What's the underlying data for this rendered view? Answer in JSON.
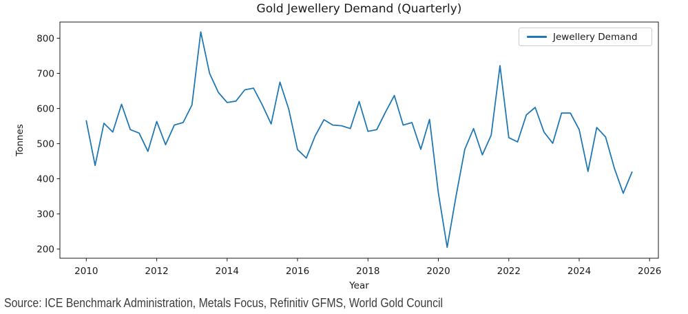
{
  "page": {
    "background": "#ffffff",
    "text_color": "#1a1a1a"
  },
  "source": "Source: ICE Benchmark Administration, Metals Focus, Refinitiv GFMS, World Gold Council",
  "chart_data": {
    "type": "line",
    "title": "Gold Jewellery Demand (Quarterly)",
    "xlabel": "Year",
    "ylabel": "Tonnes",
    "xlim": [
      2009.25,
      2026.25
    ],
    "ylim": [
      174,
      846
    ],
    "x_ticks": [
      2010,
      2012,
      2014,
      2016,
      2018,
      2020,
      2022,
      2024,
      2026
    ],
    "y_ticks": [
      200,
      300,
      400,
      500,
      600,
      700,
      800
    ],
    "grid": false,
    "legend_position": "upper right",
    "line_color": "#1f77b4",
    "axis_color": "#1a1a1a",
    "x_start": 2010.0,
    "x_step": 0.25,
    "quarters": [
      "2010 Q1",
      "2010 Q2",
      "2010 Q3",
      "2010 Q4",
      "2011 Q1",
      "2011 Q2",
      "2011 Q3",
      "2011 Q4",
      "2012 Q1",
      "2012 Q2",
      "2012 Q3",
      "2012 Q4",
      "2013 Q1",
      "2013 Q2",
      "2013 Q3",
      "2013 Q4",
      "2014 Q1",
      "2014 Q2",
      "2014 Q3",
      "2014 Q4",
      "2015 Q1",
      "2015 Q2",
      "2015 Q3",
      "2015 Q4",
      "2016 Q1",
      "2016 Q2",
      "2016 Q3",
      "2016 Q4",
      "2017 Q1",
      "2017 Q2",
      "2017 Q3",
      "2017 Q4",
      "2018 Q1",
      "2018 Q2",
      "2018 Q3",
      "2018 Q4",
      "2019 Q1",
      "2019 Q2",
      "2019 Q3",
      "2019 Q4",
      "2020 Q1",
      "2020 Q2",
      "2020 Q3",
      "2020 Q4",
      "2021 Q1",
      "2021 Q2",
      "2021 Q3",
      "2021 Q4",
      "2022 Q1",
      "2022 Q2",
      "2022 Q3",
      "2022 Q4",
      "2023 Q1",
      "2023 Q2",
      "2023 Q3",
      "2023 Q4",
      "2024 Q1",
      "2024 Q2",
      "2024 Q3",
      "2024 Q4",
      "2025 Q1",
      "2025 Q2",
      "2025 Q3"
    ],
    "series": [
      {
        "name": "Jewellery Demand",
        "values": [
          565,
          438,
          558,
          533,
          612,
          540,
          530,
          478,
          563,
          497,
          553,
          560,
          610,
          818,
          700,
          646,
          617,
          621,
          653,
          658,
          610,
          556,
          675,
          598,
          483,
          459,
          522,
          568,
          553,
          551,
          543,
          620,
          535,
          540,
          590,
          637,
          553,
          560,
          484,
          569,
          360,
          205,
          350,
          484,
          543,
          468,
          524,
          722,
          517,
          505,
          582,
          603,
          533,
          501,
          587,
          587,
          540,
          421,
          546,
          519,
          430,
          359,
          419
        ]
      }
    ]
  }
}
